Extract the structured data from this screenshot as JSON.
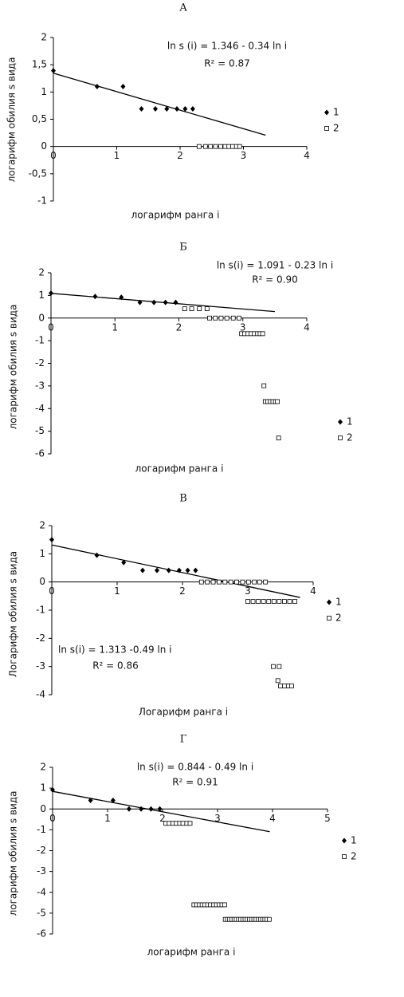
{
  "chart_data": [
    {
      "type": "scatter",
      "title": "А",
      "x_label": "логарифм ранга i",
      "y_label": "логарифм обилия s вида",
      "annotations": [
        "ln s (i) = 1.346  - 0.34 ln i",
        "R² = 0.87"
      ],
      "xlim": [
        0,
        4
      ],
      "xticks": [
        0,
        1,
        2,
        3,
        4
      ],
      "ylim": [
        -1,
        2
      ],
      "yticks": [
        -1,
        {
          "value": -0.5,
          "label": "-0,5"
        },
        0,
        {
          "value": 0.5,
          "label": "0,5"
        },
        1,
        {
          "value": 1.5,
          "label": "1,5"
        },
        2
      ],
      "series": [
        {
          "name": "1",
          "marker": "diamond",
          "color": "#000000",
          "x": [
            0,
            0.69,
            1.1,
            1.39,
            1.61,
            1.79,
            1.95,
            2.08,
            2.2
          ],
          "values": [
            1.39,
            1.1,
            1.1,
            0.69,
            0.69,
            0.69,
            0.69,
            0.69,
            0.69
          ]
        },
        {
          "name": "2",
          "marker": "square",
          "color": "#000000",
          "x": [
            2.3,
            2.4,
            2.48,
            2.56,
            2.64,
            2.71,
            2.77,
            2.83,
            2.89,
            2.94
          ],
          "values": [
            0,
            0,
            0,
            0,
            0,
            0,
            0,
            0,
            0,
            0
          ]
        }
      ],
      "trend": {
        "x": [
          0,
          3.35
        ],
        "values": [
          1.346,
          0.207
        ]
      }
    },
    {
      "type": "scatter",
      "title": "Б",
      "x_label": "логарифм ранга i",
      "y_label": "логарифм обилия s вида",
      "annotations": [
        "ln s(i) = 1.091 - 0.23 ln i",
        "R² = 0.90"
      ],
      "xlim": [
        0,
        4
      ],
      "xticks": [
        0,
        1,
        2,
        3,
        4
      ],
      "ylim": [
        -6,
        2
      ],
      "yticks": [
        -6,
        -5,
        -4,
        -3,
        -2,
        -1,
        0,
        1,
        2
      ],
      "series": [
        {
          "name": "1",
          "marker": "diamond",
          "color": "#000000",
          "x": [
            0,
            0.69,
            1.1,
            1.39,
            1.61,
            1.79,
            1.95
          ],
          "values": [
            1.1,
            0.95,
            0.92,
            0.69,
            0.69,
            0.69,
            0.69
          ]
        },
        {
          "name": "2",
          "marker": "square",
          "color": "#000000",
          "x": [
            2.09,
            2.2,
            2.32,
            2.44,
            2.48,
            2.57,
            2.66,
            2.75,
            2.85,
            2.94,
            2.98,
            3.03,
            3.08,
            3.13,
            3.18,
            3.23,
            3.27,
            3.31,
            3.33,
            3.35,
            3.39,
            3.43,
            3.47,
            3.51,
            3.54,
            3.56
          ],
          "values": [
            0.41,
            0.41,
            0.41,
            0.41,
            0,
            0,
            0,
            0,
            0,
            0,
            -0.69,
            -0.69,
            -0.69,
            -0.69,
            -0.69,
            -0.69,
            -0.69,
            -0.69,
            -2.99,
            -3.69,
            -3.69,
            -3.69,
            -3.69,
            -3.69,
            -3.69,
            -5.3
          ]
        }
      ],
      "trend": {
        "x": [
          0,
          3.5
        ],
        "values": [
          1.091,
          0.286
        ]
      }
    },
    {
      "type": "scatter",
      "title": "В",
      "x_label": "Логарифм ранга i",
      "y_label": "Логарифм обилия s вида",
      "annotations": [
        "ln s(i) = 1.313 -0.49 ln i",
        "R² = 0.86"
      ],
      "xlim": [
        0,
        4
      ],
      "xticks": [
        0,
        1,
        2,
        3,
        4
      ],
      "ylim": [
        -4,
        2
      ],
      "yticks": [
        -4,
        -3,
        -2,
        -1,
        0,
        1,
        2
      ],
      "series": [
        {
          "name": "1",
          "marker": "diamond",
          "color": "#000000",
          "x": [
            0,
            0.69,
            1.1,
            1.39,
            1.61,
            1.79,
            1.95,
            2.08,
            2.2
          ],
          "values": [
            1.5,
            0.95,
            0.69,
            0.41,
            0.41,
            0.41,
            0.41,
            0.41,
            0.41
          ]
        },
        {
          "name": "2",
          "marker": "square",
          "color": "#000000",
          "x": [
            2.29,
            2.38,
            2.47,
            2.56,
            2.65,
            2.74,
            2.83,
            2.92,
            3.01,
            3.1,
            3.18,
            3.27,
            3.0,
            3.08,
            3.16,
            3.24,
            3.32,
            3.4,
            3.48,
            3.56,
            3.64,
            3.72,
            3.39,
            3.48,
            3.46,
            3.5,
            3.56,
            3.62,
            3.67
          ],
          "values": [
            0,
            0,
            0,
            0,
            0,
            0,
            0,
            0,
            0,
            0,
            0,
            0,
            -0.69,
            -0.69,
            -0.69,
            -0.69,
            -0.69,
            -0.69,
            -0.69,
            -0.69,
            -0.69,
            -0.69,
            -3,
            -3,
            -3.5,
            -3.69,
            -3.69,
            -3.69,
            -3.69
          ]
        }
      ],
      "trend": {
        "x": [
          0,
          3.8
        ],
        "values": [
          1.313,
          -0.549
        ]
      }
    },
    {
      "type": "scatter",
      "title": "Г",
      "x_label": "логарифм ранга i",
      "y_label": "логарифм обилия s вида",
      "annotations": [
        "ln s(i) = 0.844  - 0.49 ln i",
        "R² = 0.91"
      ],
      "xlim": [
        0,
        5
      ],
      "xticks": [
        0,
        1,
        2,
        3,
        4,
        5
      ],
      "ylim": [
        -6,
        2
      ],
      "yticks": [
        -6,
        -5,
        -4,
        -3,
        -2,
        -1,
        0,
        1,
        2
      ],
      "series": [
        {
          "name": "1",
          "marker": "diamond",
          "color": "#000000",
          "x": [
            0,
            0.69,
            1.1,
            1.39,
            1.61,
            1.79,
            1.95
          ],
          "values": [
            0.92,
            0.41,
            0.41,
            0,
            0,
            0,
            0
          ]
        },
        {
          "name": "2",
          "marker": "square",
          "color": "#000000",
          "x": [
            2.06,
            2.12,
            2.19,
            2.25,
            2.31,
            2.37,
            2.44,
            2.5,
            2.57,
            2.62,
            2.67,
            2.72,
            2.77,
            2.82,
            2.87,
            2.93,
            2.98,
            3.03,
            3.08,
            3.13,
            3.14,
            3.18,
            3.22,
            3.26,
            3.3,
            3.34,
            3.38,
            3.42,
            3.46,
            3.5,
            3.54,
            3.58,
            3.62,
            3.66,
            3.7,
            3.74,
            3.78,
            3.82,
            3.86,
            3.9,
            3.94
          ],
          "values": [
            -0.69,
            -0.69,
            -0.69,
            -0.69,
            -0.69,
            -0.69,
            -0.69,
            -0.69,
            -4.6,
            -4.6,
            -4.6,
            -4.6,
            -4.6,
            -4.6,
            -4.6,
            -4.6,
            -4.6,
            -4.6,
            -4.6,
            -4.6,
            -5.3,
            -5.3,
            -5.3,
            -5.3,
            -5.3,
            -5.3,
            -5.3,
            -5.3,
            -5.3,
            -5.3,
            -5.3,
            -5.3,
            -5.3,
            -5.3,
            -5.3,
            -5.3,
            -5.3,
            -5.3,
            -5.3,
            -5.3,
            -5.3
          ]
        }
      ],
      "trend": {
        "x": [
          0,
          3.95
        ],
        "values": [
          0.844,
          -1.09
        ]
      }
    }
  ]
}
